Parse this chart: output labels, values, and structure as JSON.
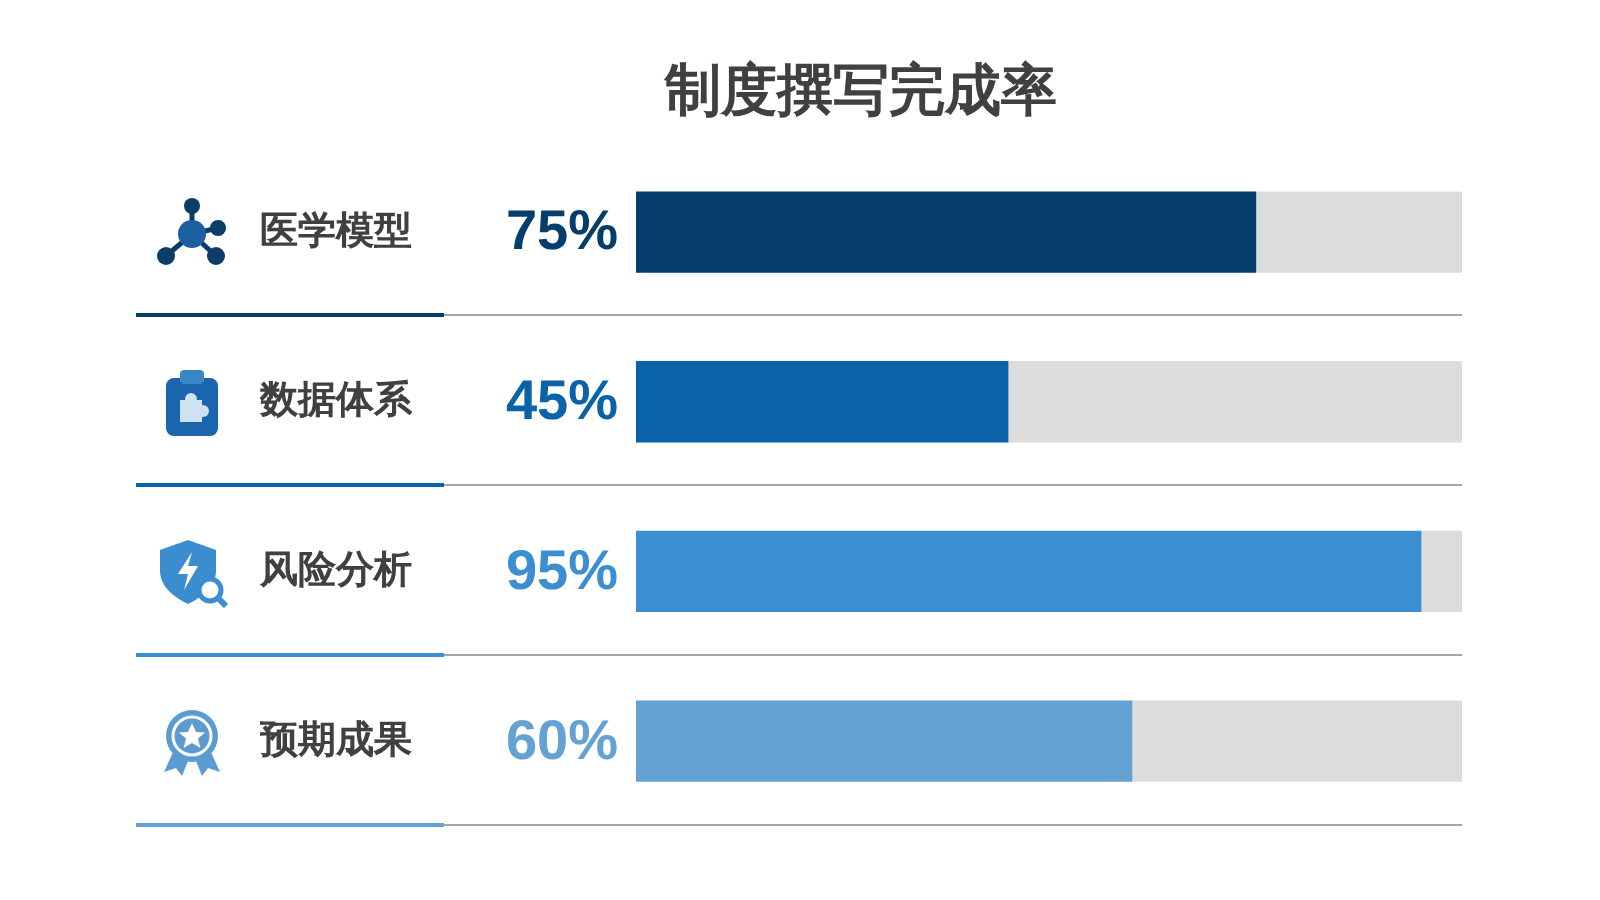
{
  "chart_data": {
    "type": "bar",
    "orientation": "horizontal",
    "stacked": true,
    "title": "制度撰写完成率",
    "categories": [
      "医学模型",
      "数据体系",
      "风险分析",
      "预期成果"
    ],
    "series": [
      {
        "colors": [
          "#053d6b",
          "#0a62a8",
          "#3b8fd0",
          "#63a2d2"
        ],
        "values": [
          75,
          45,
          95,
          60
        ],
        "value_labels": [
          "75%",
          "45%",
          "95%",
          "60%"
        ]
      },
      {
        "color": "#dcdcdc",
        "values": [
          25,
          55,
          5,
          40
        ]
      }
    ],
    "xlim": [
      0,
      100
    ],
    "grid": "y",
    "legend": false,
    "tick_labels": "y"
  }
}
